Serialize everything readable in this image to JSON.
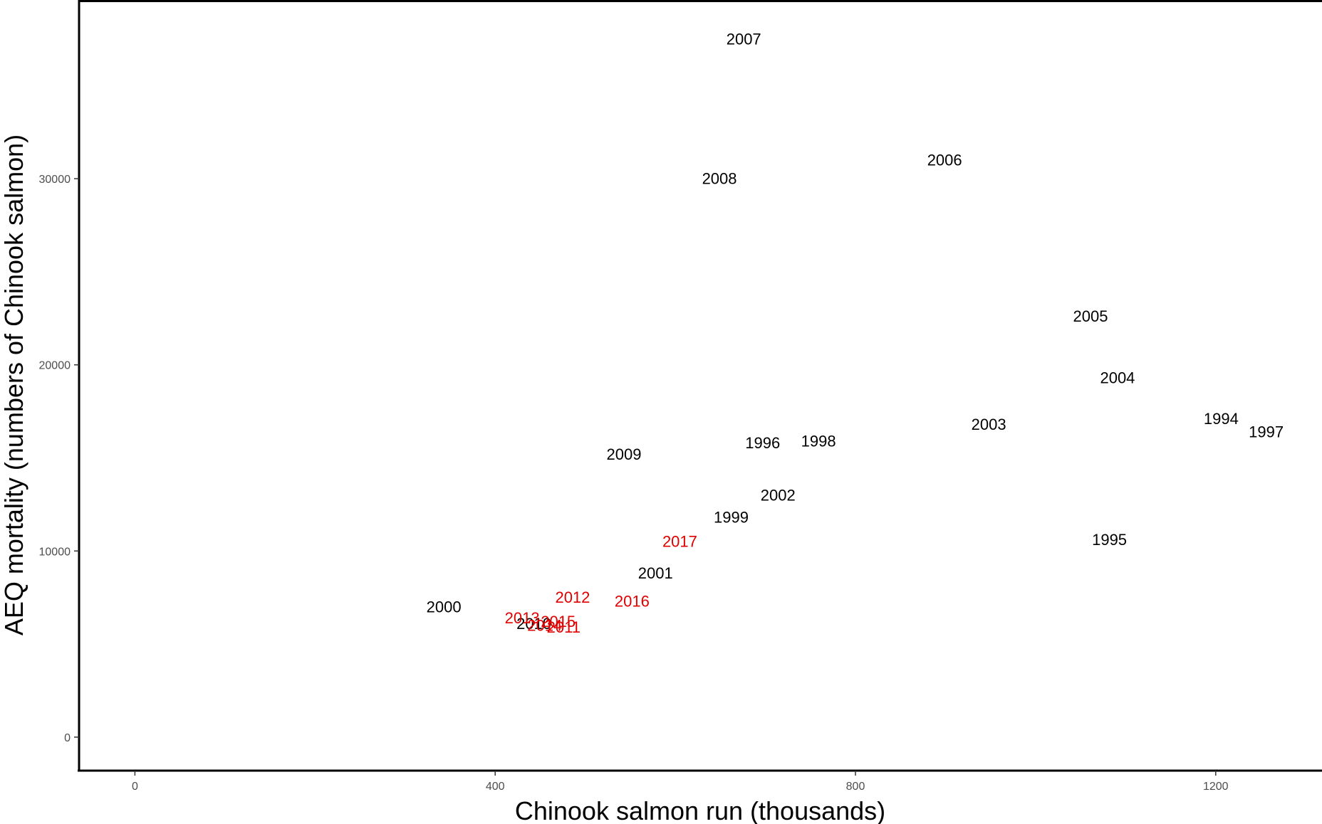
{
  "chart_data": {
    "type": "scatter",
    "title": "",
    "xlabel": "Chinook salmon run (thousands)",
    "ylabel": "AEQ mortality (numbers of Chinook salmon)",
    "xlim": [
      -62,
      1318
    ],
    "ylim": [
      -1800,
      39600
    ],
    "x_ticks": [
      0,
      400,
      800,
      1200
    ],
    "x_tick_labels": [
      "0",
      "400",
      "800",
      "1200"
    ],
    "y_ticks": [
      0,
      10000,
      20000,
      30000
    ],
    "y_tick_labels": [
      "0",
      "10000",
      "20000",
      "30000"
    ],
    "grid": false,
    "legend": "none",
    "colors": {
      "black": "#000000",
      "red": "#e00000",
      "axis": "#000000",
      "tick_text": "#4d4d4d"
    },
    "points": [
      {
        "label": "1994",
        "x": 1206,
        "y": 17100,
        "color": "black"
      },
      {
        "label": "1995",
        "x": 1082,
        "y": 10600,
        "color": "black"
      },
      {
        "label": "1996",
        "x": 697,
        "y": 15800,
        "color": "black"
      },
      {
        "label": "1997",
        "x": 1256,
        "y": 16400,
        "color": "black"
      },
      {
        "label": "1998",
        "x": 759,
        "y": 15900,
        "color": "black"
      },
      {
        "label": "1999",
        "x": 662,
        "y": 11800,
        "color": "black"
      },
      {
        "label": "2000",
        "x": 343,
        "y": 7000,
        "color": "black"
      },
      {
        "label": "2001",
        "x": 578,
        "y": 8800,
        "color": "black"
      },
      {
        "label": "2002",
        "x": 714,
        "y": 13000,
        "color": "black"
      },
      {
        "label": "2003",
        "x": 948,
        "y": 16800,
        "color": "black"
      },
      {
        "label": "2004",
        "x": 1091,
        "y": 19300,
        "color": "black"
      },
      {
        "label": "2005",
        "x": 1061,
        "y": 22600,
        "color": "black"
      },
      {
        "label": "2006",
        "x": 899,
        "y": 31000,
        "color": "black"
      },
      {
        "label": "2007",
        "x": 676,
        "y": 37500,
        "color": "black"
      },
      {
        "label": "2008",
        "x": 649,
        "y": 30000,
        "color": "black"
      },
      {
        "label": "2009",
        "x": 543,
        "y": 15200,
        "color": "black"
      },
      {
        "label": "2010",
        "x": 443,
        "y": 6100,
        "color": "black"
      },
      {
        "label": "2011",
        "x": 476,
        "y": 5900,
        "color": "red"
      },
      {
        "label": "2012",
        "x": 486,
        "y": 7500,
        "color": "red"
      },
      {
        "label": "2013",
        "x": 430,
        "y": 6400,
        "color": "red"
      },
      {
        "label": "2014",
        "x": 455,
        "y": 6000,
        "color": "red"
      },
      {
        "label": "2015",
        "x": 470,
        "y": 6200,
        "color": "red"
      },
      {
        "label": "2016",
        "x": 552,
        "y": 7300,
        "color": "red"
      },
      {
        "label": "2017",
        "x": 605,
        "y": 10500,
        "color": "red"
      }
    ]
  }
}
